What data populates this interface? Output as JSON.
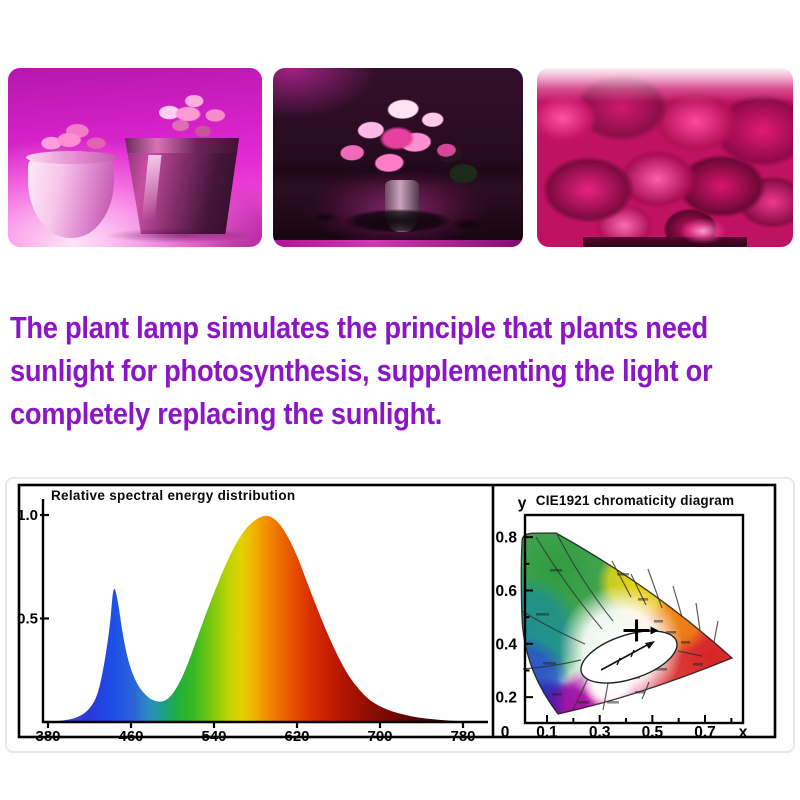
{
  "photos": {
    "items": [
      {
        "label": "Succulent plants in pots under pink grow light"
      },
      {
        "label": "Flower bouquet under pink grow light"
      },
      {
        "label": "Lettuce crops growing under pink grow light"
      }
    ]
  },
  "description": {
    "color": "#8c15c6",
    "lines": [
      "The plant lamp simulates the principle that plants need",
      "sunlight for photosynthesis, supplementing the light or",
      "completely replacing the sunlight."
    ]
  },
  "chart_data": [
    {
      "type": "area",
      "title": "Relative spectral energy distribution",
      "xlabel": "",
      "ylabel": "",
      "xlim": [
        380,
        790
      ],
      "ylim": [
        0,
        1.05
      ],
      "xticks": [
        380,
        460,
        540,
        620,
        700,
        780
      ],
      "yticks": [
        0.5,
        1.0
      ],
      "grid": false,
      "points": [
        [
          380,
          0
        ],
        [
          398,
          0.008
        ],
        [
          410,
          0.025
        ],
        [
          420,
          0.06
        ],
        [
          428,
          0.13
        ],
        [
          434,
          0.27
        ],
        [
          440,
          0.47
        ],
        [
          443,
          0.67
        ],
        [
          447,
          0.6
        ],
        [
          452,
          0.42
        ],
        [
          458,
          0.28
        ],
        [
          465,
          0.19
        ],
        [
          472,
          0.14
        ],
        [
          480,
          0.105
        ],
        [
          490,
          0.095
        ],
        [
          498,
          0.12
        ],
        [
          506,
          0.18
        ],
        [
          514,
          0.27
        ],
        [
          522,
          0.38
        ],
        [
          532,
          0.52
        ],
        [
          542,
          0.65
        ],
        [
          552,
          0.77
        ],
        [
          562,
          0.87
        ],
        [
          572,
          0.945
        ],
        [
          582,
          0.985
        ],
        [
          590,
          1.0
        ],
        [
          598,
          0.985
        ],
        [
          606,
          0.94
        ],
        [
          614,
          0.87
        ],
        [
          622,
          0.78
        ],
        [
          630,
          0.67
        ],
        [
          640,
          0.54
        ],
        [
          650,
          0.42
        ],
        [
          660,
          0.31
        ],
        [
          670,
          0.22
        ],
        [
          680,
          0.155
        ],
        [
          690,
          0.105
        ],
        [
          700,
          0.075
        ],
        [
          712,
          0.05
        ],
        [
          724,
          0.034
        ],
        [
          736,
          0.022
        ],
        [
          750,
          0.013
        ],
        [
          762,
          0.008
        ],
        [
          775,
          0.004
        ],
        [
          780,
          0.003
        ]
      ]
    },
    {
      "type": "chromaticity",
      "title": "CIE1921 chromaticity diagram",
      "xlabel": "x",
      "ylabel": "y",
      "origin_label": "0",
      "xlim": [
        0,
        0.85
      ],
      "ylim": [
        0.1,
        0.9
      ],
      "xticks": [
        0.1,
        0.3,
        0.5,
        0.7
      ],
      "yticks": [
        0.2,
        0.4,
        0.6,
        0.8
      ],
      "marker": {
        "x": 0.44,
        "y": 0.45
      }
    }
  ]
}
